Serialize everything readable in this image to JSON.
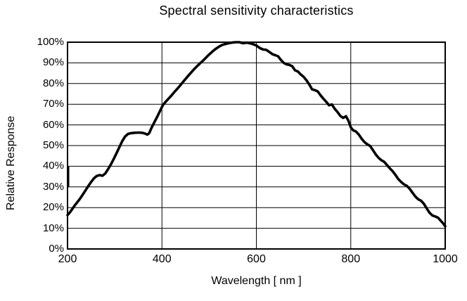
{
  "chart_data": {
    "type": "line",
    "title": "Spectral sensitivity characteristics",
    "xlabel": "Wavelength [ nm ]",
    "ylabel": "Relative Response",
    "xlim": [
      200,
      1000
    ],
    "ylim": [
      0,
      100
    ],
    "grid": true,
    "legend": "none",
    "background_color": "#ffffff",
    "grid_color": "#000000",
    "x_ticks": [
      {
        "value": 200,
        "label": "200"
      },
      {
        "value": 400,
        "label": "400"
      },
      {
        "value": 600,
        "label": "600"
      },
      {
        "value": 800,
        "label": "800"
      },
      {
        "value": 1000,
        "label": "1000"
      }
    ],
    "y_ticks": [
      {
        "value": 0,
        "label": "0%"
      },
      {
        "value": 10,
        "label": "10%"
      },
      {
        "value": 20,
        "label": "20%"
      },
      {
        "value": 30,
        "label": "30%"
      },
      {
        "value": 40,
        "label": "40%"
      },
      {
        "value": 50,
        "label": "50%"
      },
      {
        "value": 60,
        "label": "60%"
      },
      {
        "value": 70,
        "label": "70%"
      },
      {
        "value": 80,
        "label": "80%"
      },
      {
        "value": 90,
        "label": "90%"
      },
      {
        "value": 100,
        "label": "100%"
      }
    ],
    "series": [
      {
        "name": "relative_response",
        "color": "#000000",
        "points": [
          [
            200,
            16.4
          ],
          [
            205,
            17.7
          ],
          [
            210,
            19.3
          ],
          [
            215,
            21.0
          ],
          [
            220,
            22.4
          ],
          [
            226,
            24.2
          ],
          [
            232,
            26.2
          ],
          [
            238,
            28.3
          ],
          [
            244,
            30.4
          ],
          [
            250,
            32.4
          ],
          [
            256,
            34.2
          ],
          [
            262,
            35.3
          ],
          [
            268,
            35.7
          ],
          [
            274,
            35.4
          ],
          [
            280,
            36.5
          ],
          [
            286,
            38.6
          ],
          [
            292,
            41.0
          ],
          [
            298,
            43.6
          ],
          [
            304,
            46.4
          ],
          [
            310,
            49.3
          ],
          [
            316,
            52.2
          ],
          [
            322,
            54.4
          ],
          [
            328,
            55.6
          ],
          [
            334,
            56.0
          ],
          [
            342,
            56.2
          ],
          [
            350,
            56.3
          ],
          [
            358,
            56.2
          ],
          [
            364,
            55.8
          ],
          [
            369,
            55.3
          ],
          [
            373,
            56.0
          ],
          [
            378,
            58.6
          ],
          [
            384,
            61.3
          ],
          [
            390,
            63.9
          ],
          [
            396,
            66.8
          ],
          [
            402,
            69.6
          ],
          [
            408,
            71.2
          ],
          [
            414,
            72.7
          ],
          [
            420,
            74.2
          ],
          [
            426,
            75.8
          ],
          [
            432,
            77.3
          ],
          [
            438,
            78.9
          ],
          [
            444,
            80.6
          ],
          [
            450,
            82.2
          ],
          [
            456,
            83.8
          ],
          [
            462,
            85.4
          ],
          [
            468,
            86.9
          ],
          [
            474,
            88.3
          ],
          [
            480,
            89.6
          ],
          [
            486,
            90.9
          ],
          [
            492,
            92.2
          ],
          [
            498,
            93.6
          ],
          [
            504,
            94.9
          ],
          [
            510,
            96.1
          ],
          [
            516,
            97.1
          ],
          [
            522,
            98.0
          ],
          [
            528,
            98.7
          ],
          [
            534,
            99.1
          ],
          [
            541,
            99.5
          ],
          [
            548,
            99.8
          ],
          [
            556,
            100.0
          ],
          [
            564,
            100.0
          ],
          [
            572,
            99.5
          ],
          [
            580,
            99.8
          ],
          [
            590,
            99.3
          ],
          [
            600,
            98.4
          ],
          [
            607,
            97.2
          ],
          [
            614,
            96.5
          ],
          [
            621,
            96.3
          ],
          [
            628,
            95.2
          ],
          [
            634,
            94.2
          ],
          [
            640,
            93.7
          ],
          [
            646,
            93.2
          ],
          [
            652,
            91.4
          ],
          [
            658,
            90.0
          ],
          [
            664,
            89.3
          ],
          [
            670,
            89.0
          ],
          [
            676,
            88.4
          ],
          [
            682,
            86.4
          ],
          [
            688,
            85.8
          ],
          [
            694,
            84.4
          ],
          [
            700,
            83.3
          ],
          [
            706,
            81.6
          ],
          [
            712,
            79.6
          ],
          [
            718,
            77.2
          ],
          [
            724,
            76.8
          ],
          [
            730,
            76.2
          ],
          [
            736,
            74.3
          ],
          [
            742,
            72.7
          ],
          [
            748,
            71.2
          ],
          [
            754,
            69.5
          ],
          [
            760,
            69.9
          ],
          [
            766,
            67.8
          ],
          [
            772,
            66.2
          ],
          [
            778,
            64.3
          ],
          [
            784,
            63.4
          ],
          [
            790,
            64.2
          ],
          [
            795,
            62.0
          ],
          [
            800,
            58.8
          ],
          [
            805,
            57.4
          ],
          [
            811,
            56.8
          ],
          [
            817,
            55.3
          ],
          [
            823,
            53.3
          ],
          [
            829,
            51.7
          ],
          [
            835,
            50.6
          ],
          [
            841,
            49.8
          ],
          [
            847,
            47.8
          ],
          [
            853,
            45.7
          ],
          [
            859,
            44.0
          ],
          [
            865,
            42.9
          ],
          [
            871,
            42.1
          ],
          [
            877,
            40.5
          ],
          [
            883,
            38.9
          ],
          [
            889,
            37.5
          ],
          [
            895,
            35.7
          ],
          [
            901,
            33.7
          ],
          [
            907,
            32.3
          ],
          [
            913,
            31.2
          ],
          [
            919,
            30.5
          ],
          [
            925,
            29.0
          ],
          [
            931,
            27.1
          ],
          [
            937,
            25.3
          ],
          [
            943,
            24.0
          ],
          [
            949,
            23.3
          ],
          [
            955,
            21.8
          ],
          [
            961,
            19.6
          ],
          [
            967,
            17.5
          ],
          [
            973,
            16.2
          ],
          [
            979,
            15.7
          ],
          [
            985,
            15.1
          ],
          [
            991,
            13.5
          ],
          [
            996,
            12.3
          ],
          [
            1000,
            11.0
          ]
        ]
      }
    ]
  }
}
